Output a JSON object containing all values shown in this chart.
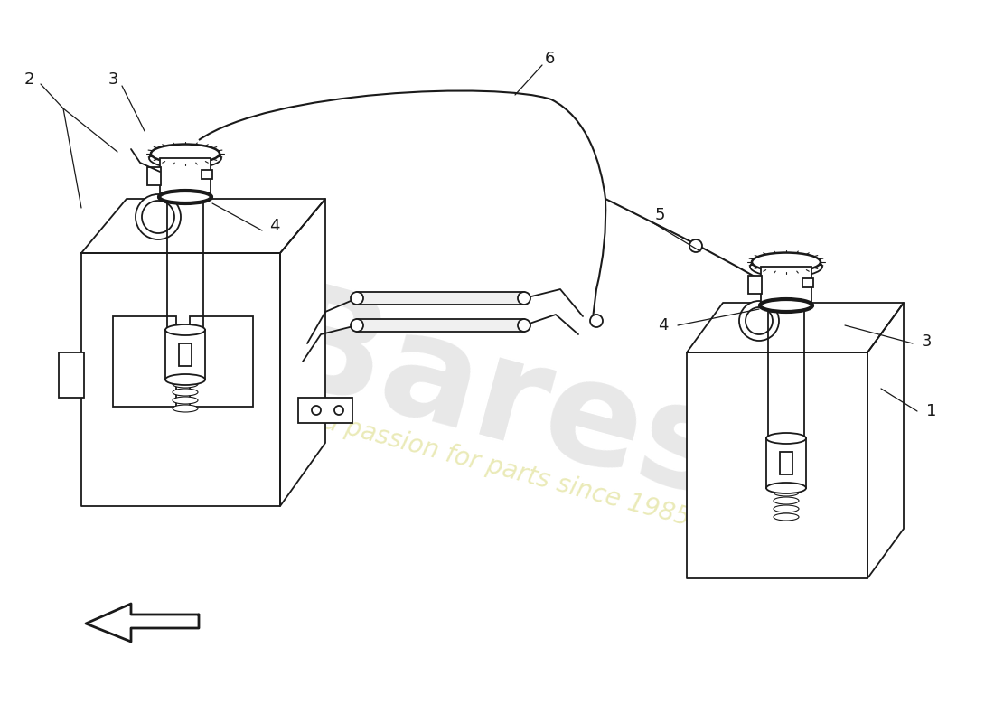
{
  "background_color": "#ffffff",
  "line_color": "#1a1a1a",
  "watermark_color1": "#cccccc",
  "watermark_color2": "#e8e8b0",
  "figsize": [
    11.0,
    8.0
  ],
  "dpi": 100
}
